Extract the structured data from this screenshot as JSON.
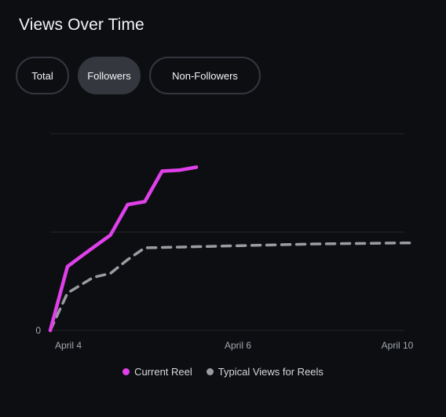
{
  "header": {
    "title": "Views Over Time"
  },
  "tabs": [
    {
      "label": "Total",
      "active": false
    },
    {
      "label": "Followers",
      "active": true
    },
    {
      "label": "Non-Followers",
      "active": false
    }
  ],
  "chart_data": {
    "type": "line",
    "title": "Views Over Time",
    "xlabel": "",
    "ylabel": "",
    "x_ticks": [
      {
        "label": "April 4",
        "day": 4
      },
      {
        "label": "April 6",
        "day": 6
      },
      {
        "label": "April 10",
        "day": 10
      }
    ],
    "y_ticks": [
      {
        "label": "0",
        "value": 0
      },
      {
        "label": "",
        "value": 1
      },
      {
        "label": "",
        "value": 2
      }
    ],
    "xlim": [
      3.9,
      10
    ],
    "ylim": [
      0,
      2
    ],
    "grid": true,
    "legend_position": "bottom-center",
    "series": [
      {
        "name": "Current Reel",
        "color": "#e040e9",
        "style": "solid",
        "points": [
          {
            "x": 3.9,
            "y": 0.0
          },
          {
            "x": 4.1,
            "y": 0.65
          },
          {
            "x": 4.3,
            "y": 0.78
          },
          {
            "x": 4.6,
            "y": 0.97
          },
          {
            "x": 4.8,
            "y": 1.28
          },
          {
            "x": 5.0,
            "y": 1.31
          },
          {
            "x": 5.2,
            "y": 1.62
          },
          {
            "x": 5.4,
            "y": 1.63
          },
          {
            "x": 5.6,
            "y": 1.66
          }
        ]
      },
      {
        "name": "Typical Views for Reels",
        "color": "#9a9ca1",
        "style": "dashed",
        "points": [
          {
            "x": 3.9,
            "y": 0.0
          },
          {
            "x": 4.1,
            "y": 0.38
          },
          {
            "x": 4.4,
            "y": 0.54
          },
          {
            "x": 4.6,
            "y": 0.58
          },
          {
            "x": 4.8,
            "y": 0.72
          },
          {
            "x": 5.0,
            "y": 0.84
          },
          {
            "x": 5.5,
            "y": 0.85
          },
          {
            "x": 6.0,
            "y": 0.86
          },
          {
            "x": 7.0,
            "y": 0.88
          },
          {
            "x": 8.0,
            "y": 0.89
          },
          {
            "x": 10.0,
            "y": 0.89
          }
        ]
      }
    ]
  },
  "legend": [
    {
      "label": "Current Reel",
      "color": "#e040e9"
    },
    {
      "label": "Typical Views for Reels",
      "color": "#9a9ca1"
    }
  ]
}
